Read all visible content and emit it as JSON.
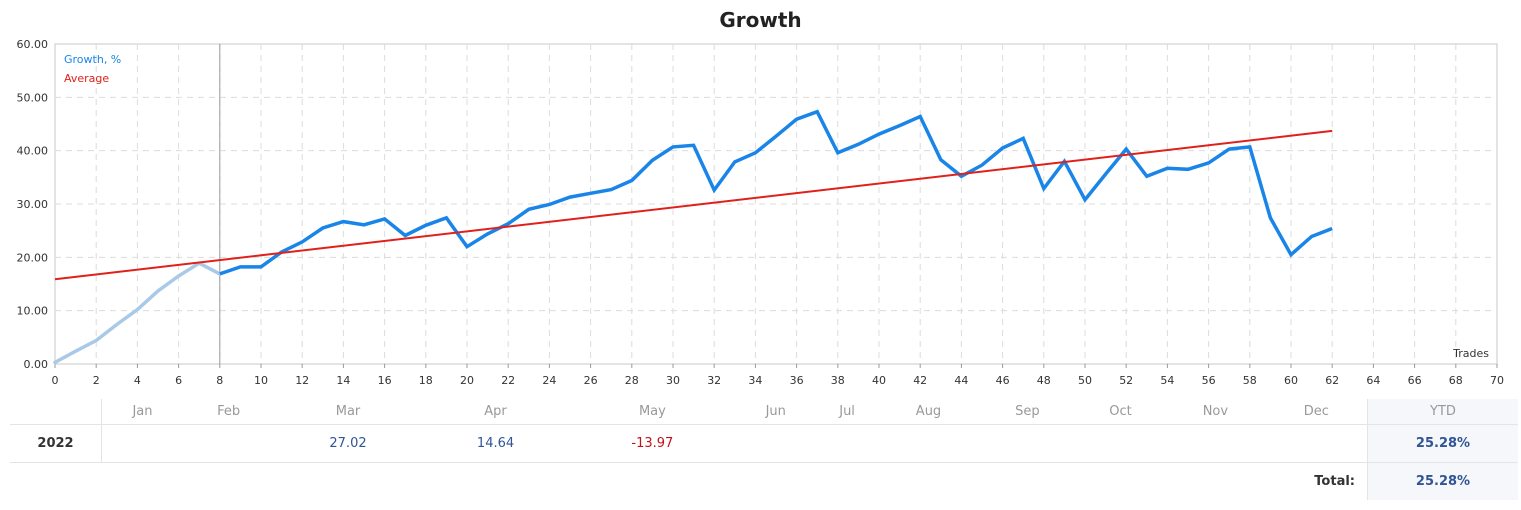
{
  "title": "Growth",
  "chart_data": {
    "type": "line",
    "title": "Growth",
    "xlabel": "Trades",
    "ylabel": "",
    "xlim": [
      0,
      70
    ],
    "ylim": [
      0,
      60
    ],
    "x_ticks": [
      0,
      2,
      4,
      6,
      8,
      10,
      12,
      14,
      16,
      18,
      20,
      22,
      24,
      26,
      28,
      30,
      32,
      34,
      36,
      38,
      40,
      42,
      44,
      46,
      48,
      50,
      52,
      54,
      56,
      58,
      60,
      62,
      64,
      66,
      68,
      70
    ],
    "y_ticks": [
      "0.00",
      "10.00",
      "20.00",
      "30.00",
      "40.00",
      "50.00",
      "60.00"
    ],
    "grid": true,
    "legend_position": "top-left",
    "marker_x": 8,
    "series": [
      {
        "name": "Growth, %",
        "color": "#1a85e8",
        "faded_color": "#a9c9e8",
        "faded_until_x": 8,
        "points": [
          [
            0,
            0.3
          ],
          [
            1,
            2.4
          ],
          [
            2,
            4.4
          ],
          [
            3,
            7.4
          ],
          [
            4,
            10.2
          ],
          [
            5,
            13.7
          ],
          [
            6,
            16.5
          ],
          [
            7,
            18.9
          ],
          [
            8,
            16.9
          ],
          [
            9,
            18.2
          ],
          [
            10,
            18.2
          ],
          [
            11,
            21.0
          ],
          [
            12,
            22.9
          ],
          [
            13,
            25.5
          ],
          [
            14,
            26.7
          ],
          [
            15,
            26.1
          ],
          [
            16,
            27.2
          ],
          [
            17,
            24.1
          ],
          [
            18,
            26.0
          ],
          [
            19,
            27.4
          ],
          [
            20,
            22.0
          ],
          [
            21,
            24.4
          ],
          [
            22,
            26.3
          ],
          [
            23,
            29.0
          ],
          [
            24,
            29.9
          ],
          [
            25,
            31.3
          ],
          [
            26,
            32.0
          ],
          [
            27,
            32.7
          ],
          [
            28,
            34.4
          ],
          [
            29,
            38.2
          ],
          [
            30,
            40.7
          ],
          [
            31,
            41.0
          ],
          [
            32,
            32.6
          ],
          [
            33,
            37.9
          ],
          [
            34,
            39.6
          ],
          [
            35,
            42.7
          ],
          [
            36,
            45.9
          ],
          [
            37,
            47.3
          ],
          [
            38,
            39.6
          ],
          [
            39,
            41.2
          ],
          [
            40,
            43.1
          ],
          [
            41,
            44.7
          ],
          [
            42,
            46.4
          ],
          [
            43,
            38.3
          ],
          [
            44,
            35.2
          ],
          [
            45,
            37.3
          ],
          [
            46,
            40.5
          ],
          [
            47,
            42.3
          ],
          [
            48,
            32.9
          ],
          [
            49,
            38.0
          ],
          [
            50,
            30.8
          ],
          [
            51,
            35.6
          ],
          [
            52,
            40.3
          ],
          [
            53,
            35.2
          ],
          [
            54,
            36.7
          ],
          [
            55,
            36.5
          ],
          [
            56,
            37.7
          ],
          [
            57,
            40.3
          ],
          [
            58,
            40.7
          ],
          [
            59,
            27.4
          ],
          [
            60,
            20.5
          ],
          [
            61,
            23.9
          ],
          [
            62,
            25.4
          ]
        ]
      },
      {
        "name": "Average",
        "color": "#e0201b",
        "points": [
          [
            0,
            15.9
          ],
          [
            62,
            43.7
          ]
        ]
      }
    ]
  },
  "table": {
    "months": [
      "Jan",
      "Feb",
      "Mar",
      "Apr",
      "May",
      "Jun",
      "Jul",
      "Aug",
      "Sep",
      "Oct",
      "Nov",
      "Dec"
    ],
    "ytd_header": "YTD",
    "rows": [
      {
        "year": "2022",
        "values": [
          "",
          "",
          "27.02",
          "14.64",
          "-13.97",
          "",
          "",
          "",
          "",
          "",
          "",
          ""
        ],
        "ytd": "25.28%"
      }
    ],
    "total_label": "Total:",
    "total_value": "25.28%"
  }
}
